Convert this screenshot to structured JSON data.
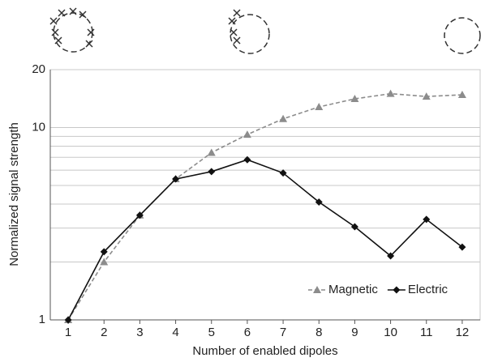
{
  "chart_data": {
    "type": "line",
    "x_label": "Number of enabled dipoles",
    "y_label": "Normalized signal strength",
    "x": [
      1,
      2,
      3,
      4,
      5,
      6,
      7,
      8,
      9,
      10,
      11,
      12
    ],
    "xlim": [
      0.5,
      12.5
    ],
    "xticks": [
      1,
      2,
      3,
      4,
      5,
      6,
      7,
      8,
      9,
      10,
      11,
      12
    ],
    "ylim": [
      1,
      20
    ],
    "yticks": [
      1,
      10,
      20
    ],
    "y_minor_grid": [
      2,
      3,
      4,
      5,
      6,
      7,
      8,
      9
    ],
    "log_y": true,
    "grid": true,
    "legend": "bottom-right",
    "series": [
      {
        "name": "Magnetic",
        "color": "#8c8c8c",
        "dashed": true,
        "marker": "triangle",
        "values": [
          1,
          2.0,
          3.5,
          5.4,
          7.4,
          9.2,
          11.1,
          12.8,
          14.1,
          15.0,
          14.5,
          14.8
        ]
      },
      {
        "name": "Electric",
        "color": "#111111",
        "dashed": false,
        "marker": "diamond",
        "values": [
          1,
          2.26,
          3.5,
          5.4,
          5.9,
          6.8,
          5.8,
          4.1,
          3.05,
          2.15,
          3.33,
          2.39
        ]
      }
    ]
  }
}
